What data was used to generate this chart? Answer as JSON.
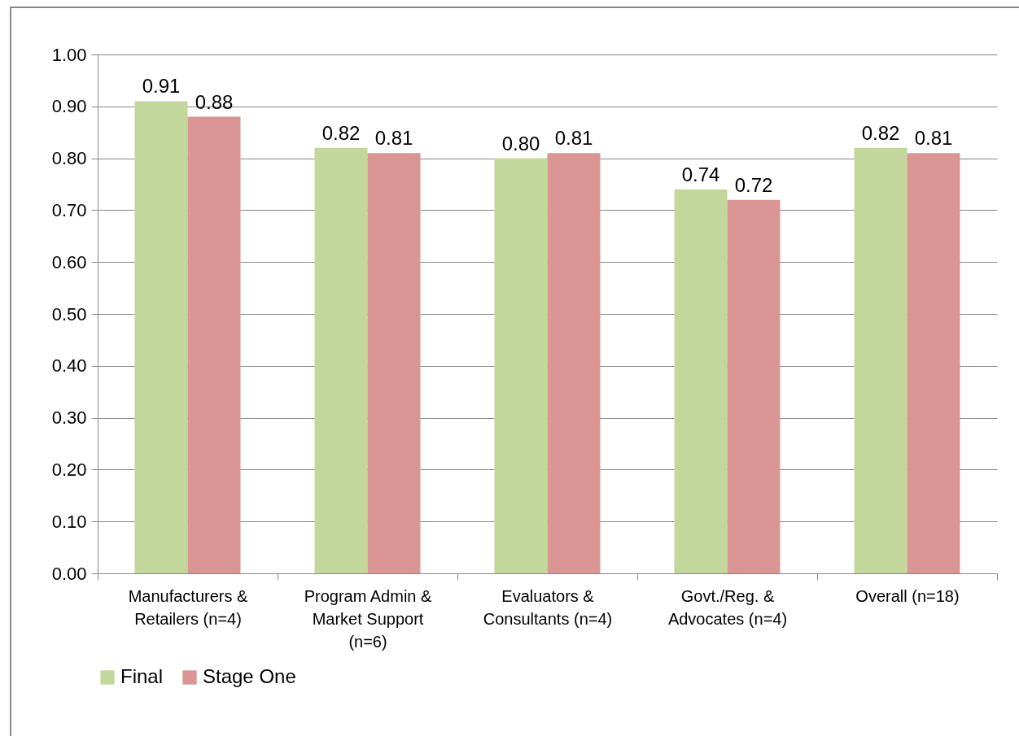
{
  "chart_data": {
    "type": "bar",
    "categories": [
      "Manufacturers & Retailers (n=4)",
      "Program Admin & Market Support (n=6)",
      "Evaluators & Consultants (n=4)",
      "Govt./Reg. & Advocates (n=4)",
      "Overall (n=18)"
    ],
    "series": [
      {
        "name": "Final",
        "color": "#c3d69b",
        "values": [
          0.91,
          0.82,
          0.8,
          0.74,
          0.82
        ],
        "value_labels": [
          "0.91",
          "0.82",
          "0.80",
          "0.74",
          "0.82"
        ]
      },
      {
        "name": "Stage One",
        "color": "#d99694",
        "values": [
          0.88,
          0.81,
          0.81,
          0.72,
          0.81
        ],
        "value_labels": [
          "0.88",
          "0.81",
          "0.81",
          "0.72",
          "0.81"
        ]
      }
    ],
    "ylim": [
      0,
      1
    ],
    "yticks": [
      {
        "value": 0,
        "label": "0.00"
      },
      {
        "value": 0.1,
        "label": "0.10"
      },
      {
        "value": 0.2,
        "label": "0.20"
      },
      {
        "value": 0.3,
        "label": "0.30"
      },
      {
        "value": 0.4,
        "label": "0.40"
      },
      {
        "value": 0.5,
        "label": "0.50"
      },
      {
        "value": 0.6,
        "label": "0.60"
      },
      {
        "value": 0.7,
        "label": "0.70"
      },
      {
        "value": 0.8,
        "label": "0.80"
      },
      {
        "value": 0.9,
        "label": "0.90"
      },
      {
        "value": 1,
        "label": "1.00"
      }
    ],
    "grid": "y",
    "legend": "bottom"
  }
}
